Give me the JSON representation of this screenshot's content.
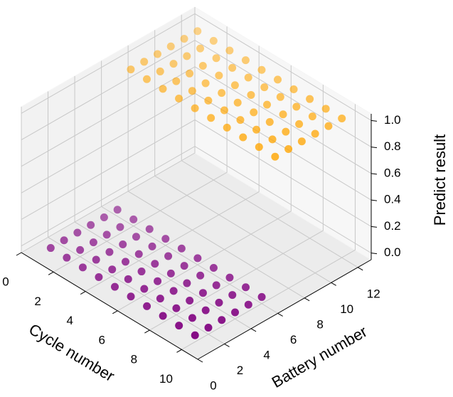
{
  "chart_data": {
    "type": "scatter3d",
    "xlabel": "Cycle number",
    "ylabel": "Battery number",
    "zlabel": "Predict result",
    "xlim": [
      0,
      11
    ],
    "ylim": [
      0,
      13
    ],
    "zlim": [
      -0.05,
      1.05
    ],
    "xticks": [
      0,
      2,
      4,
      6,
      8,
      10
    ],
    "yticks": [
      0,
      2,
      4,
      6,
      8,
      10,
      12
    ],
    "zticks": [
      {
        "value": 0,
        "label": "0.0"
      },
      0.2,
      0.4,
      0.6,
      0.8,
      {
        "value": 1,
        "label": "1.0"
      }
    ],
    "grid": true,
    "series": [
      {
        "color": "#800080",
        "x": [
          1,
          2,
          3,
          4,
          5,
          6,
          7,
          8,
          9,
          10,
          1,
          2,
          3,
          4,
          5,
          6,
          7,
          8,
          9,
          10,
          1,
          2,
          3,
          4,
          5,
          6,
          7,
          8,
          9,
          10,
          1,
          2,
          3,
          4,
          5,
          6,
          7,
          8,
          9,
          10,
          1,
          2,
          3,
          4,
          5,
          6,
          7,
          8,
          9,
          10,
          1,
          2,
          3,
          4,
          5,
          6,
          7,
          8,
          9,
          10
        ],
        "y": [
          1,
          1,
          1,
          1,
          1,
          1,
          1,
          1,
          1,
          1,
          2,
          2,
          2,
          2,
          2,
          2,
          2,
          2,
          2,
          2,
          3,
          3,
          3,
          3,
          3,
          3,
          3,
          3,
          3,
          3,
          4,
          4,
          4,
          4,
          4,
          4,
          4,
          4,
          4,
          4,
          5,
          5,
          5,
          5,
          5,
          5,
          5,
          5,
          5,
          5,
          6,
          6,
          6,
          6,
          6,
          6,
          6,
          6,
          6,
          6
        ],
        "values": [
          0,
          0,
          0,
          0,
          0,
          0,
          0,
          0,
          0,
          0,
          0,
          0,
          0,
          0,
          0,
          0,
          0,
          0,
          0,
          0,
          0,
          0,
          0,
          0,
          0,
          0,
          0,
          0,
          0,
          0,
          0,
          0,
          0,
          0,
          0,
          0,
          0,
          0,
          0,
          0,
          0,
          0,
          0,
          0,
          0,
          0,
          0,
          0,
          0,
          0,
          0,
          0,
          0,
          0,
          0,
          0,
          0,
          0,
          0,
          0
        ]
      },
      {
        "color": "#ffa500",
        "x": [
          1,
          2,
          3,
          4,
          5,
          6,
          7,
          8,
          9,
          10,
          1,
          2,
          3,
          4,
          5,
          6,
          7,
          8,
          9,
          10,
          1,
          2,
          3,
          4,
          5,
          6,
          7,
          8,
          9,
          10,
          1,
          2,
          3,
          4,
          5,
          6,
          7,
          8,
          9,
          10,
          1,
          2,
          3,
          4,
          5,
          6,
          7,
          8,
          9,
          10,
          1,
          2,
          3,
          4,
          5,
          6,
          7,
          8,
          9,
          10
        ],
        "y": [
          7,
          7,
          7,
          7,
          7,
          7,
          7,
          7,
          7,
          7,
          8,
          8,
          8,
          8,
          8,
          8,
          8,
          8,
          8,
          8,
          9,
          9,
          9,
          9,
          9,
          9,
          9,
          9,
          9,
          9,
          10,
          10,
          10,
          10,
          10,
          10,
          10,
          10,
          10,
          10,
          11,
          11,
          11,
          11,
          11,
          11,
          11,
          11,
          11,
          11,
          12,
          12,
          12,
          12,
          12,
          12,
          12,
          12,
          12,
          12
        ],
        "values": [
          1,
          1,
          1,
          1,
          1,
          1,
          1,
          1,
          1,
          1,
          1,
          1,
          1,
          1,
          1,
          1,
          1,
          1,
          1,
          1,
          1,
          1,
          1,
          1,
          1,
          1,
          1,
          1,
          1,
          1,
          1,
          1,
          1,
          1,
          1,
          1,
          1,
          1,
          1,
          1,
          1,
          1,
          1,
          1,
          1,
          1,
          1,
          1,
          1,
          1,
          1,
          1,
          1,
          1,
          1,
          1,
          1,
          1,
          1,
          1
        ]
      }
    ]
  }
}
